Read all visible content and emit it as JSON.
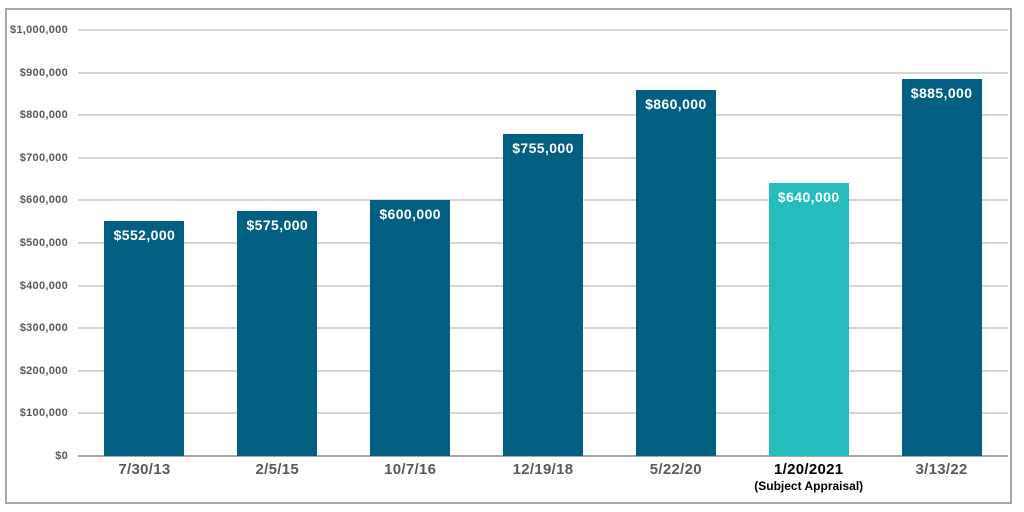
{
  "chart_data": {
    "type": "bar",
    "title": "",
    "categories": [
      "7/30/13",
      "2/5/15",
      "10/7/16",
      "12/19/18",
      "5/22/20",
      "1/20/2021",
      "3/13/22"
    ],
    "category_sublabels": [
      "",
      "",
      "",
      "",
      "",
      "(Subject Appraisal)",
      ""
    ],
    "values": [
      552000,
      575000,
      600000,
      755000,
      860000,
      640000,
      885000
    ],
    "value_labels": [
      "$552,000",
      "$575,000",
      "$600,000",
      "$755,000",
      "$860,000",
      "$640,000",
      "$885,000"
    ],
    "highlight_index": 5,
    "ylim": [
      0,
      1000000
    ],
    "ytick_step": 100000,
    "ytick_labels": [
      "$0",
      "$100,000",
      "$200,000",
      "$300,000",
      "$400,000",
      "$500,000",
      "$600,000",
      "$700,000",
      "$800,000",
      "$900,000",
      "$1,000,000"
    ],
    "grid": "horizontal",
    "legend": "none",
    "xlabel": "",
    "ylabel": ""
  },
  "colors": {
    "bar": "#015f82",
    "highlight_bar": "#25bcbd",
    "bar_label_text": "#ffffff",
    "gridline": "#d6d6d6",
    "axis_line": "#a6a6a6",
    "ytick_text": "#595959",
    "xtick_text": "#595959",
    "highlight_xtick_text": "#000000",
    "frame_border": "#a6a6a6",
    "background": "#ffffff"
  }
}
